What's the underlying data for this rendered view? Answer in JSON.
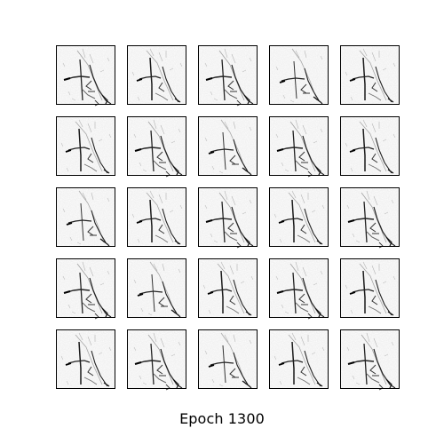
{
  "figure": {
    "caption": "Epoch 1300",
    "grid": {
      "rows": 5,
      "cols": 5
    },
    "samples": [
      "row1-col1",
      "row1-col2",
      "row1-col3",
      "row1-col4",
      "row1-col5",
      "row2-col1",
      "row2-col2",
      "row2-col3",
      "row2-col4",
      "row2-col5",
      "row3-col1",
      "row3-col2",
      "row3-col3",
      "row3-col4",
      "row3-col5",
      "row4-col1",
      "row4-col2",
      "row4-col3",
      "row4-col4",
      "row4-col5",
      "row5-col1",
      "row5-col2",
      "row5-col3",
      "row5-col4",
      "row5-col5"
    ],
    "colors": {
      "background": "#ffffff",
      "frame": "#000000",
      "stroke": "#111111"
    }
  }
}
